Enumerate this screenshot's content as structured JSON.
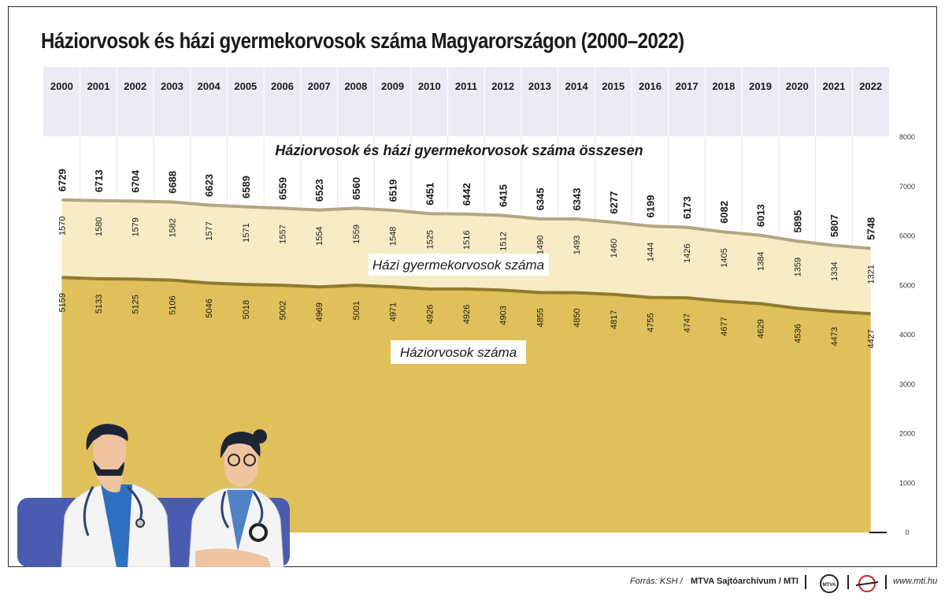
{
  "title": "Háziorvosok és házi gyermekorvosok száma Magyarországon (2000–2022)",
  "chart_data": {
    "type": "area",
    "title": "Háziorvosok és házi gyermekorvosok száma Magyarországon (2000–2022)",
    "subtitle": "Háziorvosok és házi gyermekorvosok száma összesen",
    "categories": [
      "2000",
      "2001",
      "2002",
      "2003",
      "2004",
      "2005",
      "2006",
      "2007",
      "2008",
      "2009",
      "2010",
      "2011",
      "2012",
      "2013",
      "2014",
      "2015",
      "2016",
      "2017",
      "2018",
      "2019",
      "2020",
      "2021",
      "2022"
    ],
    "series": [
      {
        "name": "Háziorvosok száma",
        "values": [
          5159,
          5133,
          5125,
          5106,
          5046,
          5018,
          5002,
          4969,
          5001,
          4971,
          4926,
          4926,
          4903,
          4855,
          4850,
          4817,
          4755,
          4747,
          4677,
          4629,
          4536,
          4473,
          4427
        ],
        "color": "#e0c05a"
      },
      {
        "name": "Házi gyermekorvosok száma",
        "values": [
          1570,
          1580,
          1579,
          1582,
          1577,
          1571,
          1557,
          1554,
          1559,
          1548,
          1525,
          1516,
          1512,
          1490,
          1493,
          1460,
          1444,
          1426,
          1405,
          1384,
          1359,
          1334,
          1321
        ],
        "color": "#f7ecc6"
      }
    ],
    "totals": [
      6729,
      6713,
      6704,
      6688,
      6623,
      6589,
      6559,
      6523,
      6560,
      6519,
      6451,
      6442,
      6415,
      6345,
      6343,
      6277,
      6199,
      6173,
      6082,
      6013,
      5895,
      5807,
      5748
    ],
    "y_ticks": [
      0,
      1000,
      2000,
      3000,
      4000,
      5000,
      6000,
      7000,
      8000
    ],
    "ylim": [
      0,
      8000
    ],
    "stacked": true,
    "grid": "vertical",
    "colors": {
      "header_band": "#ecebf5",
      "total_line": "#b5a583",
      "gp_line": "#8f7a2d"
    }
  },
  "footer": {
    "source_prefix": "Forrás: KSH / ",
    "source_archive": "MTVA Sajtóarchívum / MTI",
    "logo_mtva": "MTVA",
    "website": "www.mti.hu"
  }
}
